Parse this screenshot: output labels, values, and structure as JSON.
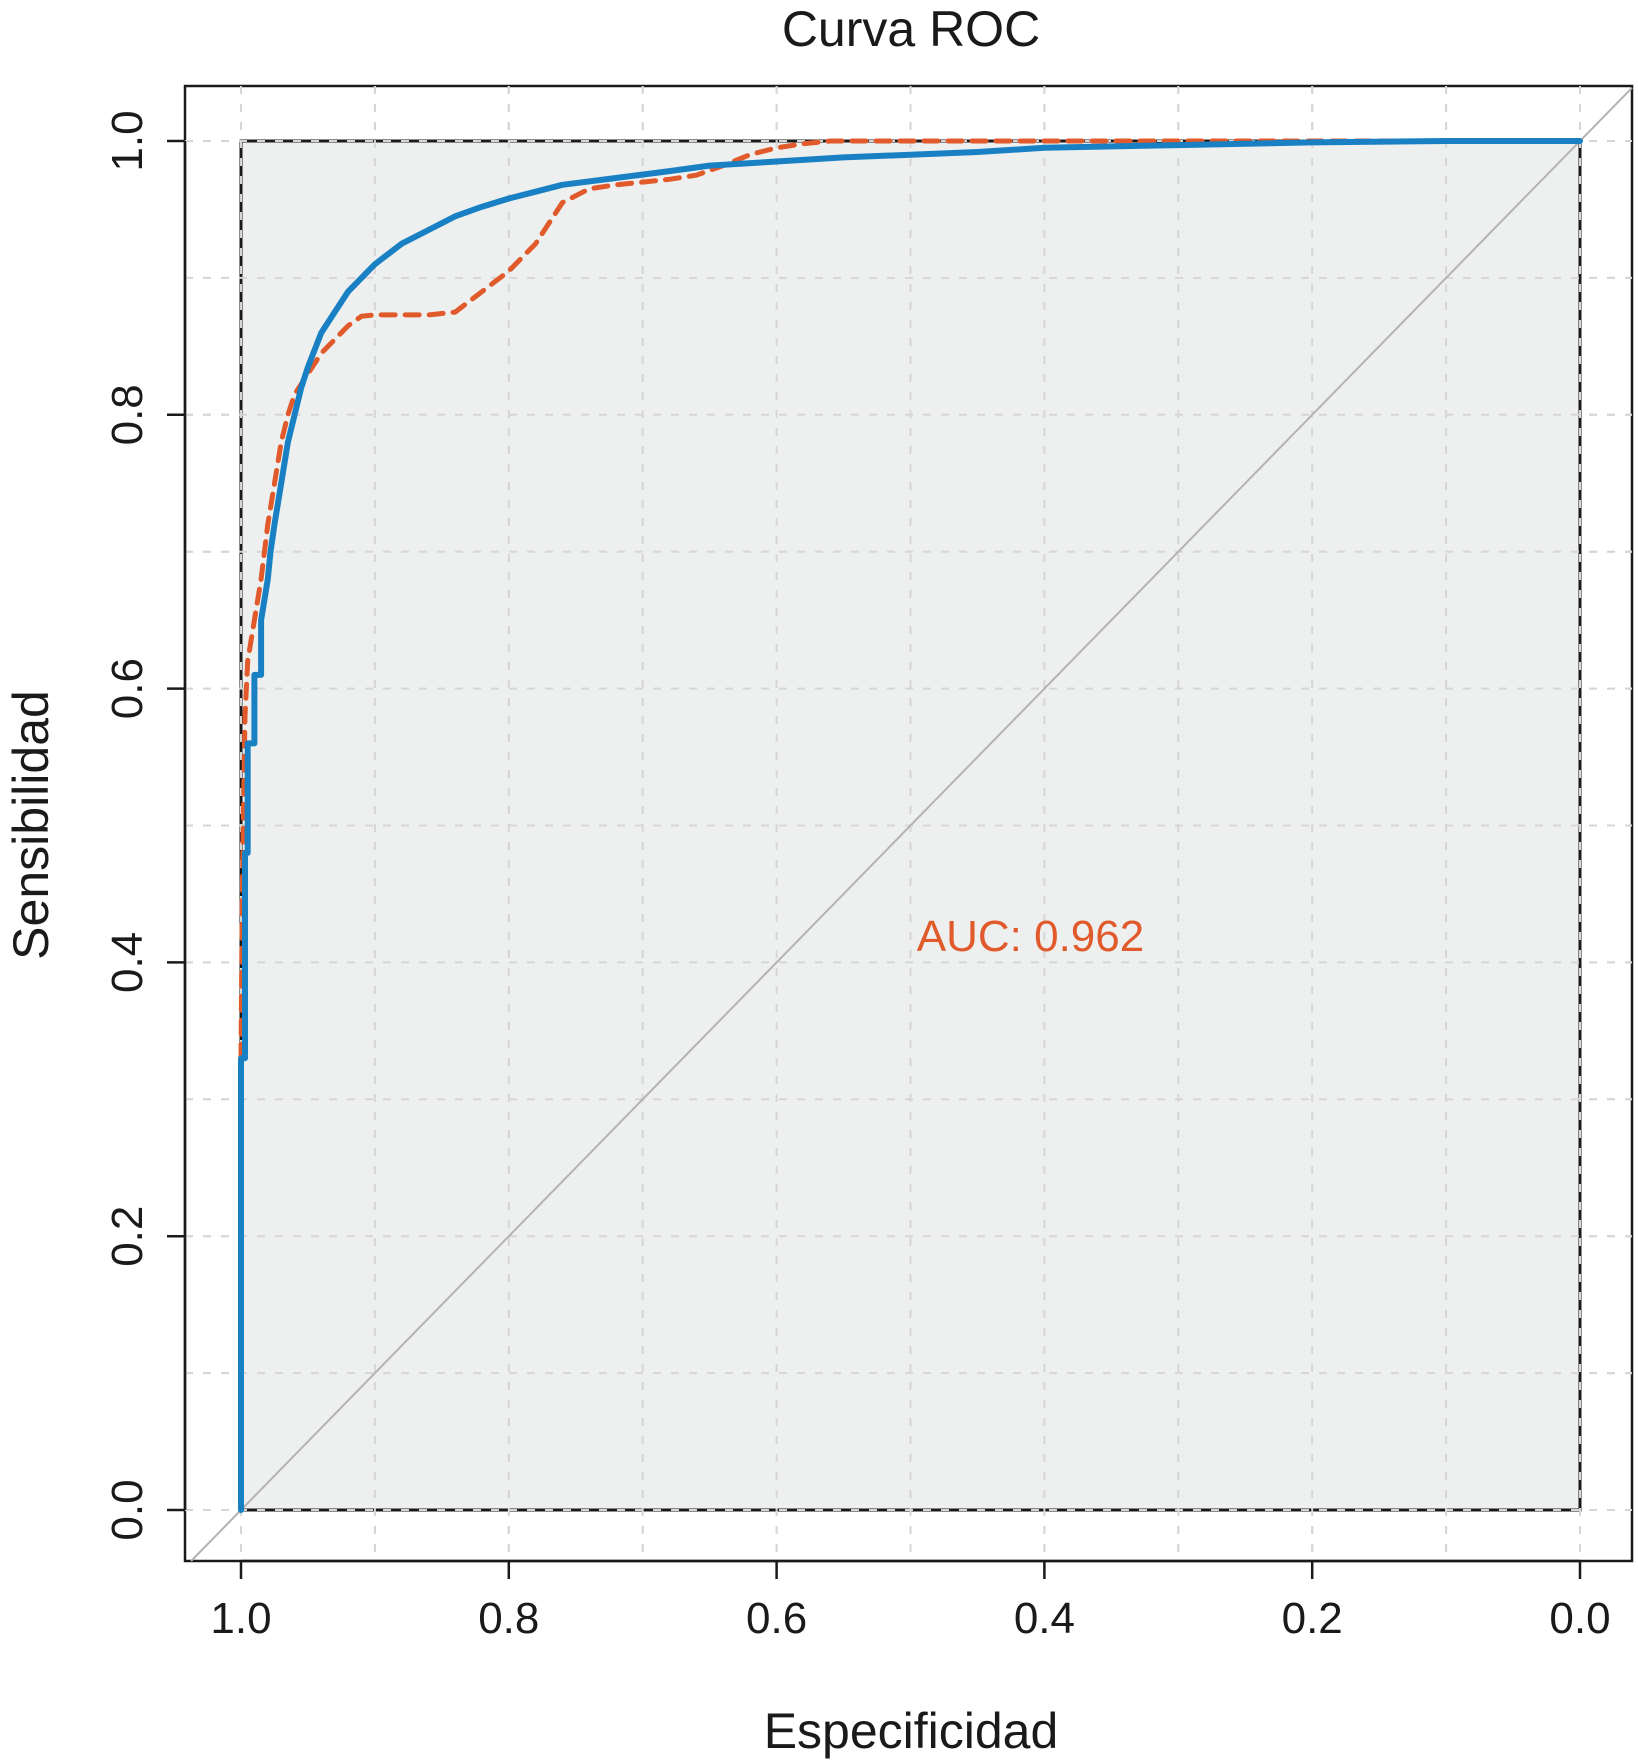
{
  "chart_data": {
    "type": "line",
    "title": "Curva ROC",
    "xlabel": "Especificidad",
    "ylabel": "Sensibilidad",
    "x_reversed": true,
    "xlim": [
      1.0,
      0.0
    ],
    "ylim": [
      0.0,
      1.0
    ],
    "x_ticks": [
      "1.0",
      "0.8",
      "0.6",
      "0.4",
      "0.2",
      "0.0"
    ],
    "y_ticks": [
      "0.0",
      "0.2",
      "0.4",
      "0.6",
      "0.8",
      "1.0"
    ],
    "grid": true,
    "annotation": {
      "text": "AUC: 0.962",
      "x": 0.5,
      "y": 0.42,
      "color": "#e05a2b"
    },
    "colors": {
      "panel_fill": "#edefee",
      "diagonal": "#b3b3b3",
      "smooth_curve": "#e05a2b",
      "empirical_curve": "#1a80c4"
    },
    "series": [
      {
        "style": "dashed",
        "color": "#e05a2b",
        "x": [
          1.0,
          0.999,
          0.998,
          0.997,
          0.995,
          0.99,
          0.985,
          0.98,
          0.975,
          0.97,
          0.965,
          0.96,
          0.95,
          0.94,
          0.93,
          0.92,
          0.91,
          0.9,
          0.88,
          0.86,
          0.84,
          0.82,
          0.8,
          0.78,
          0.76,
          0.74,
          0.72,
          0.7,
          0.68,
          0.66,
          0.64,
          0.62,
          0.6,
          0.58,
          0.56,
          0.5,
          0.4,
          0.3,
          0.2,
          0.1,
          0.0
        ],
        "y": [
          0.33,
          0.45,
          0.52,
          0.58,
          0.62,
          0.65,
          0.68,
          0.72,
          0.75,
          0.78,
          0.8,
          0.815,
          0.83,
          0.845,
          0.855,
          0.865,
          0.872,
          0.873,
          0.873,
          0.873,
          0.875,
          0.89,
          0.905,
          0.925,
          0.955,
          0.965,
          0.968,
          0.97,
          0.972,
          0.975,
          0.982,
          0.99,
          0.995,
          0.998,
          1.0,
          1.0,
          1.0,
          1.0,
          1.0,
          1.0,
          1.0
        ]
      },
      {
        "style": "solid",
        "color": "#1a80c4",
        "x": [
          1.0,
          1.0,
          0.997,
          0.997,
          0.995,
          0.995,
          0.99,
          0.99,
          0.985,
          0.985,
          0.98,
          0.978,
          0.975,
          0.97,
          0.965,
          0.96,
          0.955,
          0.95,
          0.94,
          0.93,
          0.92,
          0.9,
          0.88,
          0.86,
          0.84,
          0.82,
          0.8,
          0.78,
          0.76,
          0.72,
          0.68,
          0.65,
          0.6,
          0.55,
          0.5,
          0.45,
          0.4,
          0.3,
          0.2,
          0.1,
          0.0
        ],
        "y": [
          0.0,
          0.33,
          0.33,
          0.48,
          0.48,
          0.56,
          0.56,
          0.61,
          0.61,
          0.65,
          0.68,
          0.7,
          0.72,
          0.75,
          0.78,
          0.8,
          0.82,
          0.835,
          0.86,
          0.875,
          0.89,
          0.91,
          0.925,
          0.935,
          0.945,
          0.952,
          0.958,
          0.963,
          0.968,
          0.973,
          0.978,
          0.982,
          0.985,
          0.988,
          0.99,
          0.992,
          0.995,
          0.997,
          0.999,
          1.0,
          1.0
        ]
      }
    ]
  }
}
